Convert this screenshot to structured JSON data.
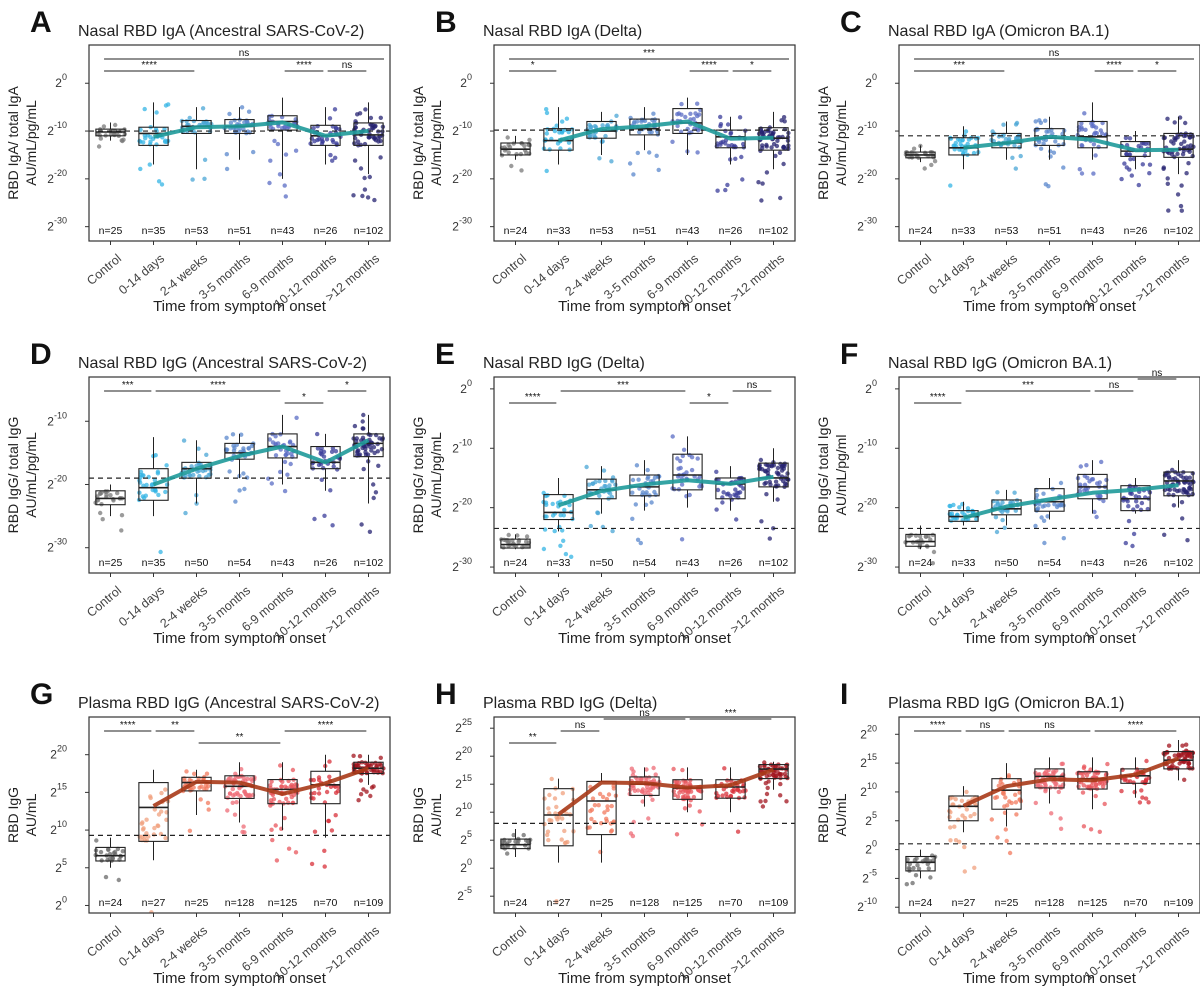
{
  "figure": {
    "x_title": "Time from symptom onset",
    "categories": [
      "Control",
      "0-14 days",
      "2-4 weeks",
      "3-5 months",
      "6-9 months",
      "10-12 months",
      ">12 months"
    ]
  },
  "colors": {
    "nasal": [
      "#7a7a7a",
      "#34b4e4",
      "#4aa6d6",
      "#5a87cc",
      "#5a6cc4",
      "#3a3c9a",
      "#252372"
    ],
    "plasma": [
      "#6a6a6a",
      "#f0a07e",
      "#f27a5e",
      "#ee6b76",
      "#e8555c",
      "#d8303a",
      "#a2141e"
    ],
    "teal_line": "#1f9a9a",
    "brown_line": "#a93a18"
  },
  "chart_data": [
    {
      "panel": "A",
      "type": "box",
      "title": "Nasal RBD IgA (Ancestral SARS-CoV-2)",
      "ylabel": [
        "RBD IgA/ total IgA",
        "AU/mL/pg/mL"
      ],
      "ylim": [
        -33,
        8
      ],
      "yticks": [
        {
          "e": "0",
          "v": 0
        },
        {
          "e": "-10",
          "v": -10
        },
        {
          "e": "-20",
          "v": -20
        },
        {
          "e": "-30",
          "v": -30
        }
      ],
      "palette": "nasal",
      "line": "teal_line",
      "ref": -10,
      "n": [
        "n=25",
        "n=35",
        "n=53",
        "n=51",
        "n=43",
        "n=26",
        "n=102"
      ],
      "box": [
        [
          -12,
          -11,
          -10.2,
          -9.6,
          -8.2
        ],
        [
          -17,
          -13,
          -10.5,
          -9.2,
          -4
        ],
        [
          -18,
          -10.5,
          -9,
          -7.8,
          -5
        ],
        [
          -16,
          -10.5,
          -9,
          -7.6,
          -5
        ],
        [
          -20,
          -9.8,
          -8,
          -6.8,
          -3
        ],
        [
          -17,
          -13,
          -11,
          -8.8,
          -5
        ],
        [
          -19,
          -13,
          -10.8,
          -8.3,
          -4
        ]
      ],
      "trend": [
        null,
        -11.2,
        -9.2,
        -9,
        -8.2,
        -11,
        -10
      ],
      "brackets": [
        {
          "from": 0,
          "to": 7,
          "level": 0,
          "label": "ns"
        },
        {
          "from": 0,
          "to": 2,
          "level": 1,
          "label": "****"
        },
        {
          "from": 4,
          "to": 5,
          "level": 1,
          "label": "****"
        },
        {
          "from": 5,
          "to": 6,
          "level": 1,
          "label": "ns"
        }
      ]
    },
    {
      "panel": "B",
      "type": "box",
      "title": "Nasal RBD IgA (Delta)",
      "ylabel": [
        "RBD IgA/ total IgA",
        "AU/mL/pg/mL"
      ],
      "ylim": [
        -33,
        8
      ],
      "yticks": [
        {
          "e": "0",
          "v": 0
        },
        {
          "e": "-10",
          "v": -10
        },
        {
          "e": "-20",
          "v": -20
        },
        {
          "e": "-30",
          "v": -30
        }
      ],
      "palette": "nasal",
      "line": "teal_line",
      "ref": -9.8,
      "n": [
        "n=24",
        "n=33",
        "n=53",
        "n=51",
        "n=43",
        "n=26",
        "n=102"
      ],
      "box": [
        [
          -16,
          -15,
          -13.8,
          -12.5,
          -11
        ],
        [
          -17,
          -14,
          -12,
          -9.5,
          -5
        ],
        [
          -15,
          -11.5,
          -10,
          -8,
          -6
        ],
        [
          -14,
          -10.8,
          -9.5,
          -7.5,
          -5
        ],
        [
          -15,
          -10.5,
          -8.3,
          -5.3,
          -3
        ],
        [
          -17,
          -13.5,
          -11.2,
          -9.8,
          -7
        ],
        [
          -18,
          -14,
          -11.5,
          -9.3,
          -6
        ]
      ],
      "trend": [
        null,
        -12,
        -9.6,
        -9,
        -8,
        -11.6,
        -11.4
      ],
      "brackets": [
        {
          "from": 0,
          "to": 7,
          "level": 0,
          "label": "***"
        },
        {
          "from": 0,
          "to": 1,
          "level": 1,
          "label": "*"
        },
        {
          "from": 4,
          "to": 5,
          "level": 1,
          "label": "****"
        },
        {
          "from": 5,
          "to": 6,
          "level": 1,
          "label": "*"
        }
      ]
    },
    {
      "panel": "C",
      "type": "box",
      "title": "Nasal RBD IgA (Omicron BA.1)",
      "ylabel": [
        "RBD IgA/ total IgA",
        "AU/mL/pg/mL"
      ],
      "ylim": [
        -33,
        8
      ],
      "yticks": [
        {
          "e": "0",
          "v": 0
        },
        {
          "e": "-10",
          "v": -10
        },
        {
          "e": "-20",
          "v": -20
        },
        {
          "e": "-30",
          "v": -30
        }
      ],
      "palette": "nasal",
      "line": "teal_line",
      "ref": -11,
      "n": [
        "n=24",
        "n=33",
        "n=53",
        "n=51",
        "n=43",
        "n=26",
        "n=102"
      ],
      "box": [
        [
          -16.5,
          -15.6,
          -15,
          -14.4,
          -13
        ],
        [
          -18,
          -15,
          -13.5,
          -11.4,
          -9
        ],
        [
          -16,
          -13.5,
          -12.5,
          -10.5,
          -8
        ],
        [
          -16,
          -13,
          -11.5,
          -9.5,
          -7
        ],
        [
          -16,
          -13.5,
          -11.2,
          -8,
          -4
        ],
        [
          -18,
          -15.3,
          -14.2,
          -12.2,
          -10
        ],
        [
          -19,
          -15.5,
          -13.8,
          -10.5,
          -7
        ]
      ],
      "trend": [
        null,
        -13.5,
        -12.5,
        -11.2,
        -11.8,
        -14,
        -13.9
      ],
      "brackets": [
        {
          "from": 0,
          "to": 7,
          "level": 0,
          "label": "ns"
        },
        {
          "from": 0,
          "to": 2,
          "level": 1,
          "label": "***"
        },
        {
          "from": 4,
          "to": 5,
          "level": 1,
          "label": "****"
        },
        {
          "from": 5,
          "to": 6,
          "level": 1,
          "label": "*"
        }
      ]
    },
    {
      "panel": "D",
      "type": "box",
      "title": "Nasal RBD IgG (Ancestral SARS-CoV-2)",
      "ylabel": [
        "RBD IgG/ total IgG",
        "AU/mL/pg/mL"
      ],
      "ylim": [
        -34,
        -3
      ],
      "yticks": [
        {
          "e": "-10",
          "v": -10
        },
        {
          "e": "-20",
          "v": -20
        },
        {
          "e": "-30",
          "v": -30
        }
      ],
      "palette": "nasal",
      "line": "teal_line",
      "ref": -19,
      "n": [
        "n=25",
        "n=35",
        "n=50",
        "n=54",
        "n=43",
        "n=26",
        "n=102"
      ],
      "box": [
        [
          -25,
          -23.2,
          -22.2,
          -21,
          -20
        ],
        [
          -25,
          -22.5,
          -20.5,
          -17.5,
          -12.5
        ],
        [
          -23,
          -19,
          -17.5,
          -16.5,
          -13
        ],
        [
          -19,
          -16,
          -15,
          -13.5,
          -12
        ],
        [
          -20,
          -15.8,
          -14,
          -12,
          -9
        ],
        [
          -21,
          -17.5,
          -16.5,
          -14,
          -12
        ],
        [
          -23,
          -15.6,
          -13.5,
          -12,
          -9
        ]
      ],
      "trend": [
        null,
        -20,
        -17.5,
        -15.5,
        -14,
        -16.5,
        -13
      ],
      "brackets": [
        {
          "from": 0,
          "to": 1,
          "level": 0,
          "label": "***"
        },
        {
          "from": 1,
          "to": 4,
          "level": 0,
          "label": "****"
        },
        {
          "from": 4,
          "to": 5,
          "level": 1,
          "label": "*"
        },
        {
          "from": 5,
          "to": 6,
          "level": 0,
          "label": "*"
        }
      ]
    },
    {
      "panel": "E",
      "type": "box",
      "title": "Nasal RBD IgG (Delta)",
      "ylabel": [
        "RBD IgG/ total IgG",
        "AU/mL/pg/mL"
      ],
      "ylim": [
        -31,
        2
      ],
      "yticks": [
        {
          "e": "0",
          "v": 0
        },
        {
          "e": "-10",
          "v": -10
        },
        {
          "e": "-20",
          "v": -20
        },
        {
          "e": "-30",
          "v": -30
        }
      ],
      "palette": "nasal",
      "line": "teal_line",
      "ref": -23.5,
      "n": [
        "n=24",
        "n=33",
        "n=50",
        "n=54",
        "n=43",
        "n=26",
        "n=102"
      ],
      "box": [
        [
          -27,
          -26.8,
          -26.2,
          -25.3,
          -24.5
        ],
        [
          -24,
          -22,
          -20.8,
          -17.8,
          -15
        ],
        [
          -21,
          -18.5,
          -17,
          -15.2,
          -13
        ],
        [
          -20.5,
          -18,
          -16.5,
          -14.5,
          -12
        ],
        [
          -20,
          -17,
          -14.5,
          -11,
          -8
        ],
        [
          -20.5,
          -18.5,
          -16,
          -15,
          -13
        ],
        [
          -19,
          -16.5,
          -15,
          -12.5,
          -10
        ]
      ],
      "trend": [
        null,
        -19.6,
        -17.2,
        -16.1,
        -15.4,
        -16,
        -14.8
      ],
      "brackets": [
        {
          "from": 0,
          "to": 1,
          "level": 1,
          "label": "****"
        },
        {
          "from": 1,
          "to": 4,
          "level": 0,
          "label": "***"
        },
        {
          "from": 4,
          "to": 5,
          "level": 1,
          "label": "*"
        },
        {
          "from": 5,
          "to": 6,
          "level": 0,
          "label": "ns"
        }
      ]
    },
    {
      "panel": "F",
      "type": "box",
      "title": "Nasal RBD IgG (Omicron BA.1)",
      "ylabel": [
        "RBD IgG/ total IgG",
        "AU/mL/pg/ml"
      ],
      "ylim": [
        -31,
        2
      ],
      "yticks": [
        {
          "e": "0",
          "v": 0
        },
        {
          "e": "-10",
          "v": -10
        },
        {
          "e": "-20",
          "v": -20
        },
        {
          "e": "-30",
          "v": -30
        }
      ],
      "palette": "nasal",
      "line": "teal_line",
      "ref": -23.5,
      "n": [
        "n=24",
        "n=33",
        "n=50",
        "n=54",
        "n=43",
        "n=26",
        "n=102"
      ],
      "box": [
        [
          -27,
          -26.5,
          -25.7,
          -24.5,
          -23
        ],
        [
          -23,
          -22.3,
          -21.5,
          -20.5,
          -19
        ],
        [
          -23,
          -21.2,
          -20.2,
          -18.7,
          -17
        ],
        [
          -22,
          -20.6,
          -19,
          -16.8,
          -15
        ],
        [
          -21,
          -18.5,
          -16.5,
          -14.4,
          -12
        ],
        [
          -21,
          -20.5,
          -18.5,
          -16.3,
          -15
        ],
        [
          -20,
          -18,
          -15.5,
          -14,
          -12
        ]
      ],
      "trend": [
        null,
        -21.7,
        -19.8,
        -18.6,
        -17.5,
        -17,
        -16.2
      ],
      "brackets": [
        {
          "from": 0,
          "to": 1,
          "level": 1,
          "label": "****"
        },
        {
          "from": 1,
          "to": 4,
          "level": 0,
          "label": "***"
        },
        {
          "from": 4,
          "to": 5,
          "level": 0,
          "label": "ns"
        },
        {
          "from": 5,
          "to": 6,
          "level": -1,
          "label": "ns"
        }
      ]
    },
    {
      "panel": "G",
      "type": "box",
      "title": "Plasma RBD IgG (Ancestral SARS-CoV-2)",
      "ylabel": [
        "RBD IgG",
        "AU/mL"
      ],
      "ylim": [
        -1,
        25
      ],
      "yticks": [
        {
          "e": "0",
          "v": 0
        },
        {
          "e": "5",
          "v": 5
        },
        {
          "e": "10",
          "v": 10
        },
        {
          "e": "15",
          "v": 15
        },
        {
          "e": "20",
          "v": 20
        }
      ],
      "palette": "plasma",
      "line": "brown_line",
      "ref": 9.3,
      "n": [
        "n=24",
        "n=27",
        "n=25",
        "n=128",
        "n=125",
        "n=70",
        "n=109"
      ],
      "box": [
        [
          5,
          5.9,
          6.6,
          7.7,
          9
        ],
        [
          6,
          8.5,
          13,
          16.3,
          18
        ],
        [
          12,
          15.2,
          16.3,
          17,
          18
        ],
        [
          11,
          14.2,
          15.8,
          17.2,
          19
        ],
        [
          10,
          13.5,
          15.4,
          16.7,
          19
        ],
        [
          9,
          13.5,
          16,
          17.8,
          20
        ],
        [
          16,
          17.5,
          18.2,
          19,
          20
        ]
      ],
      "trend": [
        null,
        13.2,
        16.4,
        16.3,
        14.8,
        16.2,
        18.2
      ],
      "brackets": [
        {
          "from": 0,
          "to": 1,
          "level": 0,
          "label": "****"
        },
        {
          "from": 1,
          "to": 2,
          "level": 0,
          "label": "**"
        },
        {
          "from": 2,
          "to": 4,
          "level": 1,
          "label": "**"
        },
        {
          "from": 4,
          "to": 6,
          "level": 0,
          "label": "****"
        }
      ]
    },
    {
      "panel": "H",
      "type": "box",
      "title": "Plasma RBD IgG (Delta)",
      "ylabel": [
        "RBD IgG",
        "AU/mL"
      ],
      "ylim": [
        -8,
        27
      ],
      "yticks": [
        {
          "e": "-5",
          "v": -5
        },
        {
          "e": "0",
          "v": 0
        },
        {
          "e": "5",
          "v": 5
        },
        {
          "e": "10",
          "v": 10
        },
        {
          "e": "15",
          "v": 15
        },
        {
          "e": "20",
          "v": 20
        },
        {
          "e": "25",
          "v": 25
        }
      ],
      "palette": "plasma",
      "line": "brown_line",
      "ref": 8,
      "n": [
        "n=24",
        "n=27",
        "n=25",
        "n=128",
        "n=125",
        "n=70",
        "n=109"
      ],
      "box": [
        [
          2,
          3.5,
          4.2,
          5.2,
          7
        ],
        [
          1,
          4,
          9.5,
          14.2,
          16
        ],
        [
          1,
          6,
          12,
          15.5,
          17
        ],
        [
          11,
          13,
          15,
          16.3,
          18
        ],
        [
          10,
          12.3,
          14.3,
          15.8,
          18
        ],
        [
          10,
          12.5,
          14.5,
          15.8,
          18
        ],
        [
          14,
          16,
          17.7,
          18.5,
          19
        ]
      ],
      "trend": [
        null,
        9.6,
        15.3,
        15.2,
        14.4,
        14.8,
        17.6
      ],
      "brackets": [
        {
          "from": 0,
          "to": 1,
          "level": 1,
          "label": "**"
        },
        {
          "from": 1,
          "to": 2,
          "level": 0,
          "label": "ns"
        },
        {
          "from": 2,
          "to": 4,
          "level": -1,
          "label": "ns"
        },
        {
          "from": 4,
          "to": 6,
          "level": -1,
          "label": "***"
        }
      ]
    },
    {
      "panel": "I",
      "type": "box",
      "title": "Plasma RBD IgG (Omicron BA.1)",
      "ylabel": [
        "RBD IgG",
        "AU/mL"
      ],
      "ylim": [
        -11,
        23
      ],
      "yticks": [
        {
          "e": "-10",
          "v": -10
        },
        {
          "e": "-5",
          "v": -5
        },
        {
          "e": "0",
          "v": 0
        },
        {
          "e": "5",
          "v": 5
        },
        {
          "e": "10",
          "v": 10
        },
        {
          "e": "15",
          "v": 15
        },
        {
          "e": "20",
          "v": 20
        }
      ],
      "palette": "plasma",
      "line": "brown_line",
      "ref": 1,
      "n": [
        "n=24",
        "n=27",
        "n=25",
        "n=128",
        "n=125",
        "n=70",
        "n=109"
      ],
      "box": [
        [
          -5,
          -3.7,
          -2.2,
          -1.2,
          0
        ],
        [
          3,
          5,
          7.5,
          9.3,
          11
        ],
        [
          4,
          7,
          10.3,
          12.3,
          15
        ],
        [
          8,
          10.7,
          12.7,
          14,
          16
        ],
        [
          7,
          10.5,
          12.3,
          13.5,
          16
        ],
        [
          9,
          11.5,
          12.8,
          14,
          16
        ],
        [
          12,
          14,
          15.5,
          17,
          19
        ]
      ],
      "trend": [
        null,
        7.6,
        11,
        12.2,
        12,
        13,
        15.8
      ],
      "brackets": [
        {
          "from": 0,
          "to": 1,
          "level": 0,
          "label": "****"
        },
        {
          "from": 1,
          "to": 2,
          "level": 0,
          "label": "ns"
        },
        {
          "from": 2,
          "to": 4,
          "level": 0,
          "label": "ns"
        },
        {
          "from": 4,
          "to": 6,
          "level": 0,
          "label": "****"
        }
      ]
    }
  ]
}
